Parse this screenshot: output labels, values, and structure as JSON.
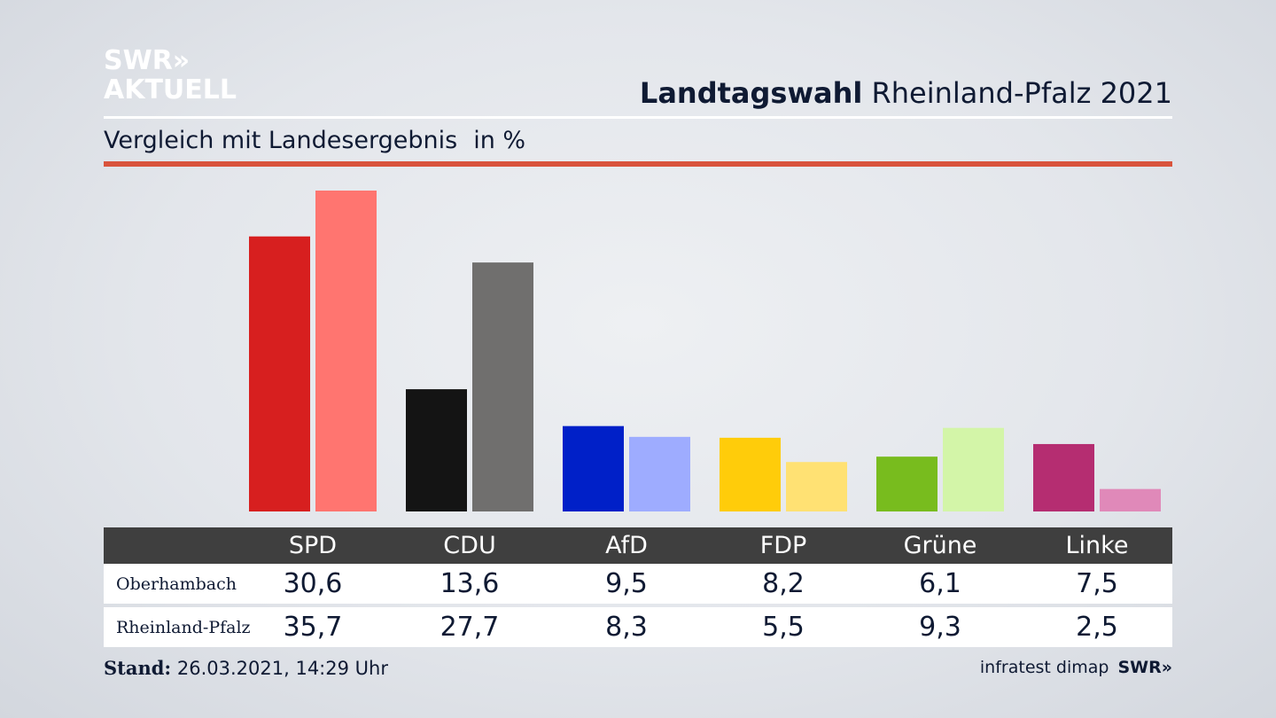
{
  "logo": {
    "line1": "SWR»",
    "line2": "AKTUELL"
  },
  "header": {
    "title_bold": "Landtagswahl",
    "title_rest": "Rheinland-Pfalz 2021"
  },
  "subtitle": {
    "text": "Vergleich mit Landesergebnis",
    "unit": "in %"
  },
  "colors": {
    "accent_rule": "#d9533c",
    "table_header": "#3f3f3f"
  },
  "chart_data": {
    "type": "bar",
    "categories": [
      "SPD",
      "CDU",
      "AfD",
      "FDP",
      "Grüne",
      "Linke"
    ],
    "series": [
      {
        "name": "Oberhambach",
        "values": [
          30.6,
          13.6,
          9.5,
          8.2,
          6.1,
          7.5
        ],
        "display": [
          "30,6",
          "13,6",
          "9,5",
          "8,2",
          "6,1",
          "7,5"
        ],
        "colors": [
          "#d71f1f",
          "#141414",
          "#0020c8",
          "#ffcc0a",
          "#78bc1e",
          "#b52d71"
        ]
      },
      {
        "name": "Rheinland-Pfalz",
        "values": [
          35.7,
          27.7,
          8.3,
          5.5,
          9.3,
          2.5
        ],
        "display": [
          "35,7",
          "27,7",
          "8,3",
          "5,5",
          "9,3",
          "2,5"
        ],
        "colors": [
          "#ff7570",
          "#706f6e",
          "#9eacff",
          "#ffe173",
          "#d3f5a8",
          "#e089b9"
        ]
      }
    ],
    "ylim": [
      0,
      35.7
    ]
  },
  "footer": {
    "stand_label": "Stand:",
    "stand_value": "26.03.2021, 14:29 Uhr",
    "source": "infratest dimap",
    "brand": "SWR»"
  }
}
